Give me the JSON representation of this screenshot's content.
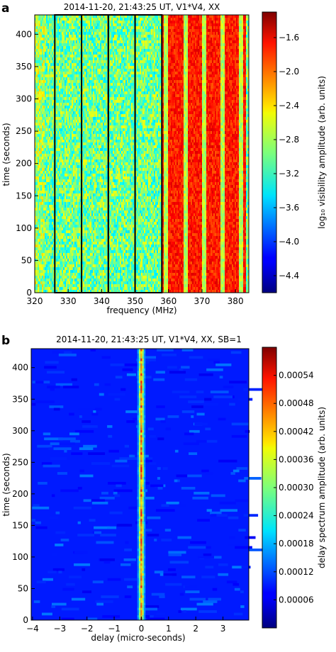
{
  "panels": [
    {
      "label": "a",
      "title": "2014-11-20, 21:43:25 UT, V1*V4, XX",
      "xlabel": "frequency (MHz)",
      "ylabel": "time (seconds)",
      "colorbar_label": "log₁₀ visibility amplitude (arb. units)"
    },
    {
      "label": "b",
      "title": "2014-11-20, 21:43:25 UT, V1*V4, XX, SB=1",
      "xlabel": "delay (micro-seconds)",
      "ylabel": "time (seconds)",
      "colorbar_label": "delay spectrum amplitude (arb. units)"
    }
  ],
  "chart_data": [
    {
      "type": "heatmap",
      "title": "2014-11-20, 21:43:25 UT, V1*V4, XX",
      "xlabel": "frequency (MHz)",
      "ylabel": "time (seconds)",
      "xlim": [
        320,
        384
      ],
      "ylim": [
        0,
        430
      ],
      "xticks": [
        320,
        330,
        340,
        350,
        360,
        370,
        380
      ],
      "yticks": [
        0,
        50,
        100,
        150,
        200,
        250,
        300,
        350,
        400
      ],
      "colorbar": {
        "label": "log₁₀ visibility amplitude (arb. units)",
        "range": [
          -4.6,
          -1.3
        ],
        "ticks": [
          -1.6,
          -2.0,
          -2.4,
          -2.8,
          -3.2,
          -3.6,
          -4.0,
          -4.4
        ],
        "tick_labels": [
          "−1.6",
          "−2.0",
          "−2.4",
          "−2.8",
          "−3.2",
          "−3.6",
          "−4.0",
          "−4.4"
        ],
        "colormap": "jet"
      },
      "background_level": -3.0,
      "outlined_subbands_mhz": [
        [
          326,
          334
        ],
        [
          334,
          342
        ],
        [
          342,
          350
        ],
        [
          350,
          358
        ]
      ],
      "rfi_region_mhz": [
        358,
        383
      ],
      "rfi_level": -1.4
    },
    {
      "type": "heatmap",
      "title": "2014-11-20, 21:43:25 UT, V1*V4, XX, SB=1",
      "xlabel": "delay (micro-seconds)",
      "ylabel": "time (seconds)",
      "xlim": [
        -4.05,
        3.95
      ],
      "ylim": [
        0,
        430
      ],
      "xticks": [
        -4,
        -3,
        -2,
        -1,
        0,
        1,
        2,
        3
      ],
      "xtick_labels": [
        "−4",
        "−3",
        "−2",
        "−1",
        "0",
        "1",
        "2",
        "3"
      ],
      "yticks": [
        0,
        50,
        100,
        150,
        200,
        250,
        300,
        350,
        400
      ],
      "colorbar": {
        "label": "delay spectrum amplitude (arb. units)",
        "range": [
          0,
          0.0006
        ],
        "ticks": [
          6e-05,
          0.00012,
          0.00018,
          0.00024,
          0.0003,
          0.00036,
          0.00042,
          0.00048,
          0.00054
        ],
        "tick_labels": [
          "0.00006",
          "0.00012",
          "0.00018",
          "0.00024",
          "0.00030",
          "0.00036",
          "0.00042",
          "0.00048",
          "0.00054"
        ],
        "colormap": "jet"
      },
      "background_level": 9e-05,
      "peak_delay_us": 0.0,
      "peak_level": 0.00045
    }
  ]
}
